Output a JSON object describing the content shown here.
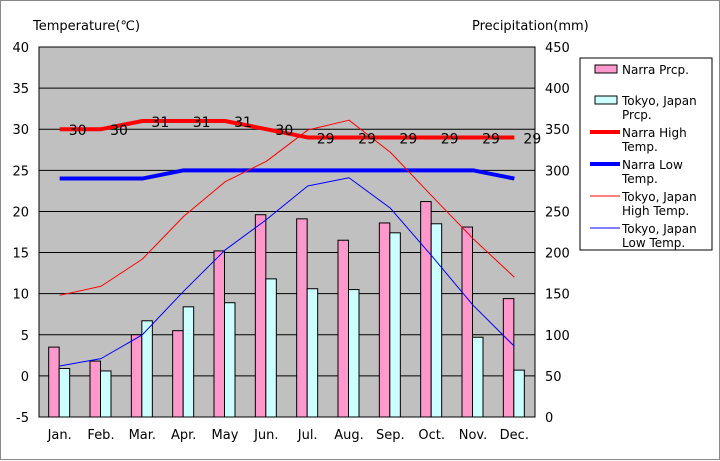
{
  "chart_data": {
    "type": "bar",
    "categories": [
      "Jan.",
      "Feb.",
      "Mar.",
      "Apr.",
      "May",
      "Jun.",
      "Jul.",
      "Aug.",
      "Sep.",
      "Oct.",
      "Nov.",
      "Dec."
    ],
    "y_left_label": "Temperature(℃)",
    "y_right_label": "Precipitation(mm)",
    "y_left_range": [
      -5,
      40
    ],
    "y_left_ticks": [
      -5,
      0,
      5,
      10,
      15,
      20,
      25,
      30,
      35,
      40
    ],
    "y_right_range": [
      0,
      450
    ],
    "y_right_ticks": [
      0,
      50,
      100,
      150,
      200,
      250,
      300,
      350,
      400,
      450
    ],
    "grid": true,
    "legend_position": "right",
    "bar_series": [
      {
        "name": "Narra Prcp.",
        "color": "#ff99cc",
        "values": [
          85,
          68,
          100,
          105,
          202,
          246,
          241,
          215,
          236,
          262,
          231,
          144
        ]
      },
      {
        "name": "Tokyo, Japan Prcp.",
        "color": "#ccffff",
        "values": [
          59,
          56,
          117,
          134,
          139,
          168,
          156,
          155,
          224,
          235,
          97,
          57
        ]
      }
    ],
    "line_series": [
      {
        "name": "Narra High Temp.",
        "color": "#ff0000",
        "width": "thick",
        "values": [
          30,
          30,
          31,
          31,
          31,
          30,
          29,
          29,
          29,
          29,
          29,
          29
        ],
        "labels": [
          "30",
          "30",
          "31",
          "31",
          "31",
          "30",
          "29",
          "29",
          "29",
          "29",
          "29",
          "29"
        ]
      },
      {
        "name": "Narra Low Temp.",
        "color": "#0000ff",
        "width": "thick",
        "values": [
          24,
          24,
          24,
          25,
          25,
          25,
          25,
          25,
          25,
          25,
          25,
          24
        ]
      },
      {
        "name": "Tokyo, Japan High Temp.",
        "color": "#ff0000",
        "width": "thin",
        "values": [
          9.8,
          10.9,
          14.2,
          19.4,
          23.6,
          26.1,
          29.9,
          31.1,
          27.2,
          21.9,
          16.7,
          12
        ]
      },
      {
        "name": "Tokyo, Japan Low Temp.",
        "color": "#0000ff",
        "width": "thin",
        "values": [
          1.2,
          2.1,
          5,
          10.3,
          15.3,
          19,
          23.1,
          24.1,
          20.4,
          14.6,
          8.6,
          3.6
        ]
      }
    ]
  }
}
